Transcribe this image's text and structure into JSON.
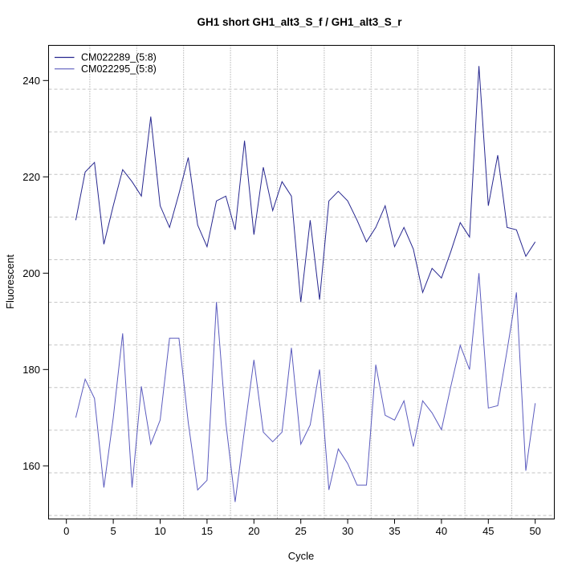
{
  "page": {
    "background": "#ffffff"
  },
  "chart_data": {
    "type": "line",
    "title": "GH1 short GH1_alt3_S_f / GH1_alt3_S_r",
    "xlabel": "Cycle",
    "ylabel": "Fluorescent",
    "x_ticks": [
      0,
      5,
      10,
      15,
      20,
      25,
      30,
      35,
      40,
      45,
      50
    ],
    "y_ticks": [
      160,
      180,
      200,
      220,
      240
    ],
    "xlim": [
      -1.94,
      52.0
    ],
    "ylim": [
      149.0,
      247.4
    ],
    "grid": {
      "on": true,
      "vertical_cycles": [
        2.5,
        7.5,
        12.5,
        17.5,
        22.5,
        27.5,
        32.5,
        37.5,
        42.5,
        47.5
      ],
      "horizontal_values": [
        238.2,
        229.35,
        220.5,
        211.65,
        202.8,
        193.95,
        185.1,
        176.25,
        167.4,
        158.55,
        149.7
      ],
      "vertical_style": "dotted",
      "horizontal_style": "dashed"
    },
    "legend": {
      "position": "top-left-inside",
      "entries": [
        "CM022289_(5:8)",
        "CM022295_(5:8)"
      ]
    },
    "x": [
      1,
      2,
      3,
      4,
      5,
      6,
      7,
      8,
      9,
      10,
      11,
      12,
      13,
      14,
      15,
      16,
      17,
      18,
      19,
      20,
      21,
      22,
      23,
      24,
      25,
      26,
      27,
      28,
      29,
      30,
      31,
      32,
      33,
      34,
      35,
      36,
      37,
      38,
      39,
      40,
      41,
      42,
      43,
      44,
      45,
      46,
      47,
      48,
      49,
      50
    ],
    "series": [
      {
        "name": "CM022289_(5:8)",
        "color": "#27278F",
        "values": [
          211,
          221,
          223,
          206,
          214,
          221.5,
          219,
          216,
          232.5,
          214,
          209.5,
          216.5,
          224,
          210,
          205.5,
          215,
          216,
          209,
          227.5,
          208,
          222,
          213,
          219,
          216,
          194,
          211,
          194.5,
          215,
          217,
          215,
          211,
          206.5,
          209.5,
          214,
          205.5,
          209.5,
          205,
          196,
          201,
          199,
          204.5,
          210.5,
          207.5,
          243,
          214,
          224.5,
          209.5,
          209,
          203.5,
          206.5
        ]
      },
      {
        "name": "CM022295_(5:8)",
        "color": "#5B5BBE",
        "values": [
          170,
          178,
          174,
          155.5,
          170,
          187.5,
          155.5,
          176.5,
          164.5,
          169.5,
          186.5,
          186.5,
          169,
          155,
          157,
          194,
          169,
          152.5,
          167.5,
          182,
          167,
          165,
          167,
          184.5,
          164.5,
          168.5,
          180,
          155,
          163.5,
          160.5,
          156,
          156,
          181,
          170.5,
          169.5,
          173.5,
          164,
          173.5,
          171,
          167.5,
          176.5,
          185,
          180,
          200,
          172,
          172.5,
          184,
          196,
          159,
          173
        ]
      }
    ],
    "colors": {
      "axis": "#000000",
      "grid_vertical": "#8c8c8c",
      "grid_horizontal": "#c3c3c3",
      "background": "#ffffff"
    }
  }
}
